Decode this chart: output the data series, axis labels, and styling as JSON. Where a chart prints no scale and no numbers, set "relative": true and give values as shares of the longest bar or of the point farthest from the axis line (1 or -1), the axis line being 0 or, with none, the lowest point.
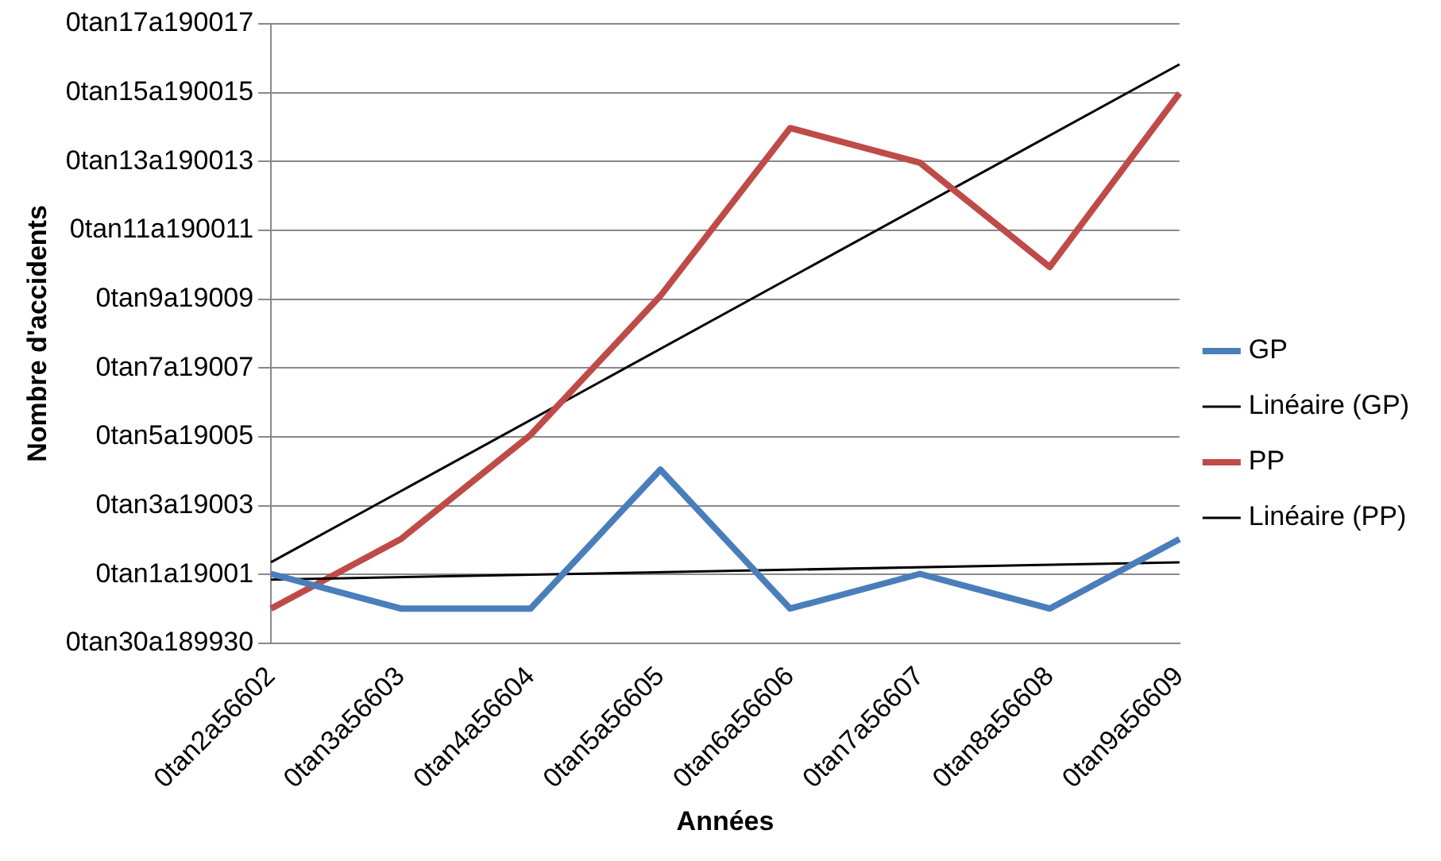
{
  "chart_data": {
    "type": "line",
    "relative": true,
    "xlabel": "Années",
    "ylabel": "Nombre d'accidents",
    "categories": [
      "0tan2a56602",
      "0tan3a56603",
      "0tan4a56604",
      "0tan5a56605",
      "0tan6a56606",
      "0tan7a56607",
      "0tan8a56608",
      "0tan9a56609"
    ],
    "series": [
      {
        "name": "GP",
        "color": "#4a7ebb",
        "values": [
          0.12,
          0.06,
          0.06,
          0.3,
          0.06,
          0.12,
          0.06,
          0.18
        ]
      },
      {
        "name": "Linéaire (GP)",
        "color": "#000000",
        "values": [
          0.11,
          null,
          null,
          null,
          null,
          null,
          null,
          0.14
        ]
      },
      {
        "name": "PP",
        "color": "#be4b48",
        "values": [
          0.06,
          0.18,
          0.36,
          0.6,
          0.89,
          0.83,
          0.65,
          0.95
        ]
      },
      {
        "name": "Linéaire (PP)",
        "color": "#000000",
        "values": [
          0.14,
          null,
          null,
          null,
          null,
          null,
          null,
          1
        ]
      }
    ],
    "annotations": [
      "0tan30a189930",
      "0tan1a19001",
      "0tan3a19003",
      "0tan5a19005",
      "0tan7a19007",
      "0tan9a19009",
      "0tan11a190011",
      "0tan13a190013",
      "0tan15a190015",
      "0tan17a190017"
    ],
    "grid": "y",
    "legend": "right",
    "marker": "none",
    "line_style": "solid"
  }
}
